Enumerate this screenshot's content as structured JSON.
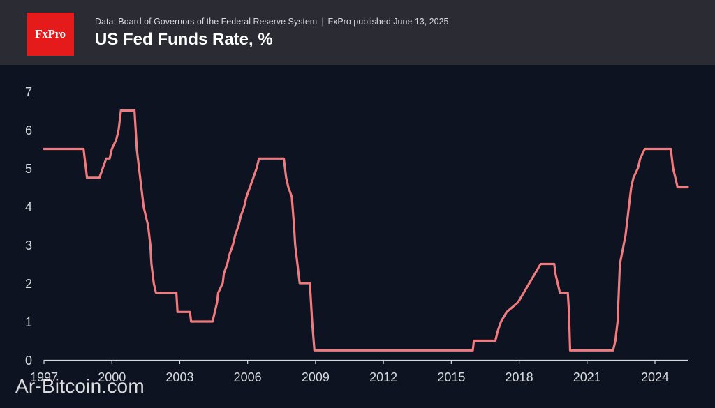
{
  "header": {
    "logo_text": "FxPro",
    "source": "Data: Board of Governors of the Federal Reserve System",
    "published": "FxPro published June 13, 2025",
    "title": "US Fed Funds Rate, %"
  },
  "watermark": "Ar-Bitcoin.com",
  "colors": {
    "line": "#f07b7e",
    "background": "#0d1320",
    "header": "#2a2b33",
    "logo": "#e51b1b"
  },
  "chart_data": {
    "type": "line",
    "title": "US Fed Funds Rate, %",
    "xlabel": "",
    "ylabel": "",
    "xlim": [
      1997,
      2025.45
    ],
    "ylim": [
      0,
      7
    ],
    "x_ticks": [
      1997,
      2000,
      2003,
      2006,
      2009,
      2012,
      2015,
      2018,
      2021,
      2024
    ],
    "y_ticks": [
      0,
      1,
      2,
      3,
      4,
      5,
      6,
      7
    ],
    "grid": false,
    "legend": "none",
    "series": [
      {
        "values": [
          [
            1997.0,
            5.5
          ],
          [
            1998.75,
            5.5
          ],
          [
            1998.8,
            5.25
          ],
          [
            1998.85,
            5.0
          ],
          [
            1998.9,
            4.75
          ],
          [
            1999.45,
            4.75
          ],
          [
            1999.6,
            5.0
          ],
          [
            1999.75,
            5.25
          ],
          [
            1999.9,
            5.25
          ],
          [
            2000.0,
            5.5
          ],
          [
            2000.2,
            5.75
          ],
          [
            2000.3,
            6.0
          ],
          [
            2000.4,
            6.5
          ],
          [
            2001.0,
            6.5
          ],
          [
            2001.05,
            6.0
          ],
          [
            2001.1,
            5.5
          ],
          [
            2001.2,
            5.0
          ],
          [
            2001.3,
            4.5
          ],
          [
            2001.4,
            4.0
          ],
          [
            2001.5,
            3.75
          ],
          [
            2001.6,
            3.5
          ],
          [
            2001.7,
            3.0
          ],
          [
            2001.75,
            2.5
          ],
          [
            2001.85,
            2.0
          ],
          [
            2001.95,
            1.75
          ],
          [
            2002.85,
            1.75
          ],
          [
            2002.9,
            1.25
          ],
          [
            2003.45,
            1.25
          ],
          [
            2003.5,
            1.0
          ],
          [
            2004.45,
            1.0
          ],
          [
            2004.55,
            1.25
          ],
          [
            2004.65,
            1.5
          ],
          [
            2004.7,
            1.75
          ],
          [
            2004.9,
            2.0
          ],
          [
            2004.95,
            2.25
          ],
          [
            2005.1,
            2.5
          ],
          [
            2005.2,
            2.75
          ],
          [
            2005.35,
            3.0
          ],
          [
            2005.45,
            3.25
          ],
          [
            2005.6,
            3.5
          ],
          [
            2005.7,
            3.75
          ],
          [
            2005.85,
            4.0
          ],
          [
            2005.95,
            4.25
          ],
          [
            2006.1,
            4.5
          ],
          [
            2006.25,
            4.75
          ],
          [
            2006.4,
            5.0
          ],
          [
            2006.5,
            5.25
          ],
          [
            2007.6,
            5.25
          ],
          [
            2007.7,
            4.75
          ],
          [
            2007.8,
            4.5
          ],
          [
            2007.95,
            4.25
          ],
          [
            2008.05,
            3.5
          ],
          [
            2008.1,
            3.0
          ],
          [
            2008.25,
            2.25
          ],
          [
            2008.3,
            2.0
          ],
          [
            2008.75,
            2.0
          ],
          [
            2008.8,
            1.5
          ],
          [
            2008.85,
            1.0
          ],
          [
            2008.95,
            0.25
          ],
          [
            2015.95,
            0.25
          ],
          [
            2016.0,
            0.5
          ],
          [
            2016.95,
            0.5
          ],
          [
            2017.05,
            0.75
          ],
          [
            2017.2,
            1.0
          ],
          [
            2017.45,
            1.25
          ],
          [
            2017.95,
            1.5
          ],
          [
            2018.2,
            1.75
          ],
          [
            2018.45,
            2.0
          ],
          [
            2018.7,
            2.25
          ],
          [
            2018.95,
            2.5
          ],
          [
            2019.55,
            2.5
          ],
          [
            2019.6,
            2.25
          ],
          [
            2019.7,
            2.0
          ],
          [
            2019.8,
            1.75
          ],
          [
            2020.15,
            1.75
          ],
          [
            2020.2,
            1.25
          ],
          [
            2020.25,
            0.25
          ],
          [
            2022.15,
            0.25
          ],
          [
            2022.25,
            0.5
          ],
          [
            2022.35,
            1.0
          ],
          [
            2022.45,
            2.5
          ],
          [
            2022.7,
            3.25
          ],
          [
            2022.85,
            4.0
          ],
          [
            2022.95,
            4.5
          ],
          [
            2023.05,
            4.75
          ],
          [
            2023.25,
            5.0
          ],
          [
            2023.35,
            5.25
          ],
          [
            2023.55,
            5.5
          ],
          [
            2024.7,
            5.5
          ],
          [
            2024.8,
            5.0
          ],
          [
            2024.9,
            4.75
          ],
          [
            2025.0,
            4.5
          ],
          [
            2025.45,
            4.5
          ]
        ]
      }
    ]
  }
}
